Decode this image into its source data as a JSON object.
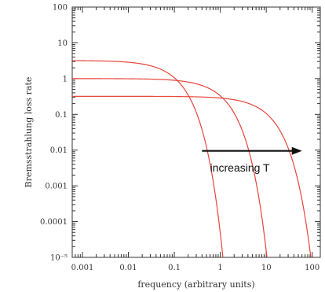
{
  "chart_data": {
    "type": "line",
    "title": "",
    "xlabel": "frequency (arbitrary units)",
    "ylabel": "Bremsstrahlung loss rate",
    "x_scale": "log",
    "y_scale": "log",
    "xlim": [
      0.0006,
      150
    ],
    "ylim": [
      1e-05,
      100
    ],
    "x_ticks": [
      {
        "value": 0.001,
        "label": "0.001"
      },
      {
        "value": 0.01,
        "label": "0.01"
      },
      {
        "value": 0.1,
        "label": "0.1"
      },
      {
        "value": 1,
        "label": "1"
      },
      {
        "value": 10,
        "label": "10"
      },
      {
        "value": 100,
        "label": "100"
      }
    ],
    "y_ticks": [
      {
        "value": 100,
        "label": "100"
      },
      {
        "value": 10,
        "label": "10"
      },
      {
        "value": 1,
        "label": "1"
      },
      {
        "value": 0.1,
        "label": "0.1"
      },
      {
        "value": 0.01,
        "label": "0.01"
      },
      {
        "value": 0.001,
        "label": "0.001"
      },
      {
        "value": 0.0001,
        "label": "0.0001"
      },
      {
        "value": 1e-05,
        "label": "10⁻⁵"
      }
    ],
    "grid": false,
    "legend": "none",
    "line_color": "#e8453c",
    "series": [
      {
        "amplitude": 3.2,
        "cutoff": 0.09
      },
      {
        "amplitude": 1.0,
        "cutoff": 0.9
      },
      {
        "amplitude": 0.32,
        "cutoff": 9.0
      }
    ],
    "annotation": {
      "text": "increasing T",
      "arrow_from": [
        0.4,
        0.0095
      ],
      "arrow_to": [
        60,
        0.0095
      ],
      "text_at": [
        0.6,
        0.0032
      ]
    }
  }
}
